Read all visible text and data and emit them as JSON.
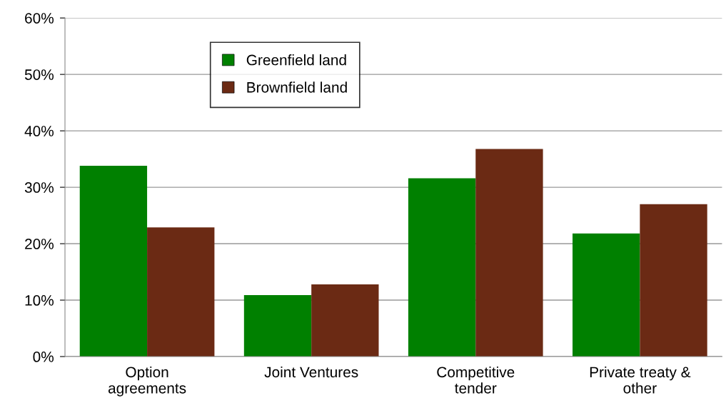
{
  "chart_data": {
    "type": "bar",
    "categories": [
      "Option\nagreements",
      "Joint Ventures",
      "Competitive\ntender",
      "Private treaty &\nother"
    ],
    "series": [
      {
        "name": "Greenfield land",
        "color": "#008000",
        "values": [
          33.8,
          10.9,
          31.6,
          21.8
        ]
      },
      {
        "name": "Brownfield land",
        "color": "#6b2a14",
        "values": [
          22.9,
          12.8,
          36.8,
          27.0
        ]
      }
    ],
    "ylim": [
      0,
      60
    ],
    "yticks": [
      {
        "value": 0,
        "label": "0%"
      },
      {
        "value": 10,
        "label": "10%"
      },
      {
        "value": 20,
        "label": "20%"
      },
      {
        "value": 30,
        "label": "30%"
      },
      {
        "value": 40,
        "label": "40%"
      },
      {
        "value": 50,
        "label": "50%"
      },
      {
        "value": 60,
        "label": "60%"
      }
    ],
    "grid": "y",
    "legend": "top left"
  }
}
